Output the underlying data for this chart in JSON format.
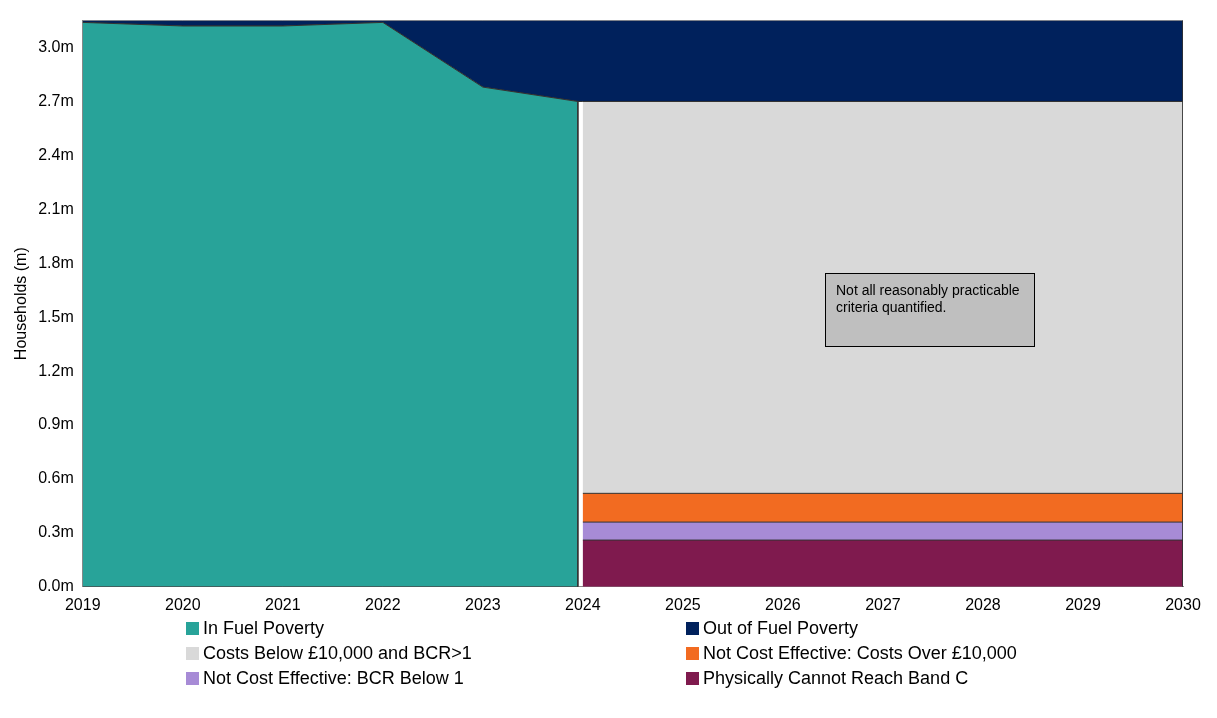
{
  "chart_data": {
    "type": "area",
    "ylabel": "Households (m)",
    "stacked": true,
    "xlim": [
      2019,
      2030
    ],
    "xticks": [
      2019,
      2020,
      2021,
      2022,
      2023,
      2024,
      2025,
      2026,
      2027,
      2028,
      2029,
      2030
    ],
    "ylim": [
      0,
      3.15
    ],
    "yticks": [
      {
        "value": 0,
        "label": "0.0m"
      },
      {
        "value": 0.3,
        "label": "0.3m"
      },
      {
        "value": 0.6,
        "label": "0.6m"
      },
      {
        "value": 0.9,
        "label": "0.9m"
      },
      {
        "value": 1.2,
        "label": "1.2m"
      },
      {
        "value": 1.5,
        "label": "1.5m"
      },
      {
        "value": 1.8,
        "label": "1.8m"
      },
      {
        "value": 2.1,
        "label": "2.1m"
      },
      {
        "value": 2.4,
        "label": "2.4m"
      },
      {
        "value": 2.7,
        "label": "2.7m"
      },
      {
        "value": 3.0,
        "label": "3.0m"
      }
    ],
    "grid": false,
    "legend": "bottom",
    "annotations": [
      "Not all reasonably practicable criteria quantified."
    ],
    "x": [
      2019,
      2020,
      2021,
      2022,
      2023,
      2023.95,
      2024,
      2030
    ],
    "series": [
      {
        "name": "Physically Cannot Reach Band C",
        "color": "#7f1a4e",
        "values": [
          null,
          null,
          null,
          null,
          null,
          null,
          0.26,
          0.26
        ]
      },
      {
        "name": "Not Cost Effective: BCR Below 1",
        "color": "#a78bd6",
        "values": [
          null,
          null,
          null,
          null,
          null,
          null,
          0.1,
          0.1
        ]
      },
      {
        "name": "Not Cost Effective: Costs Over £10,000",
        "color": "#f26b21",
        "values": [
          null,
          null,
          null,
          null,
          null,
          null,
          0.16,
          0.16
        ]
      },
      {
        "name": "Costs Below £10,000 and BCR>1",
        "color": "#d9d9d9",
        "values": [
          null,
          null,
          null,
          null,
          null,
          null,
          2.18,
          2.18
        ]
      },
      {
        "name": "In Fuel Poverty",
        "color": "#28a399",
        "values": [
          3.14,
          3.12,
          3.12,
          3.14,
          2.78,
          2.7,
          null,
          null
        ]
      },
      {
        "name": "Out of Fuel Poverty",
        "color": "#00215c",
        "values": [
          0.01,
          0.03,
          0.03,
          0.01,
          0.37,
          0.45,
          0.45,
          0.45
        ]
      }
    ]
  }
}
